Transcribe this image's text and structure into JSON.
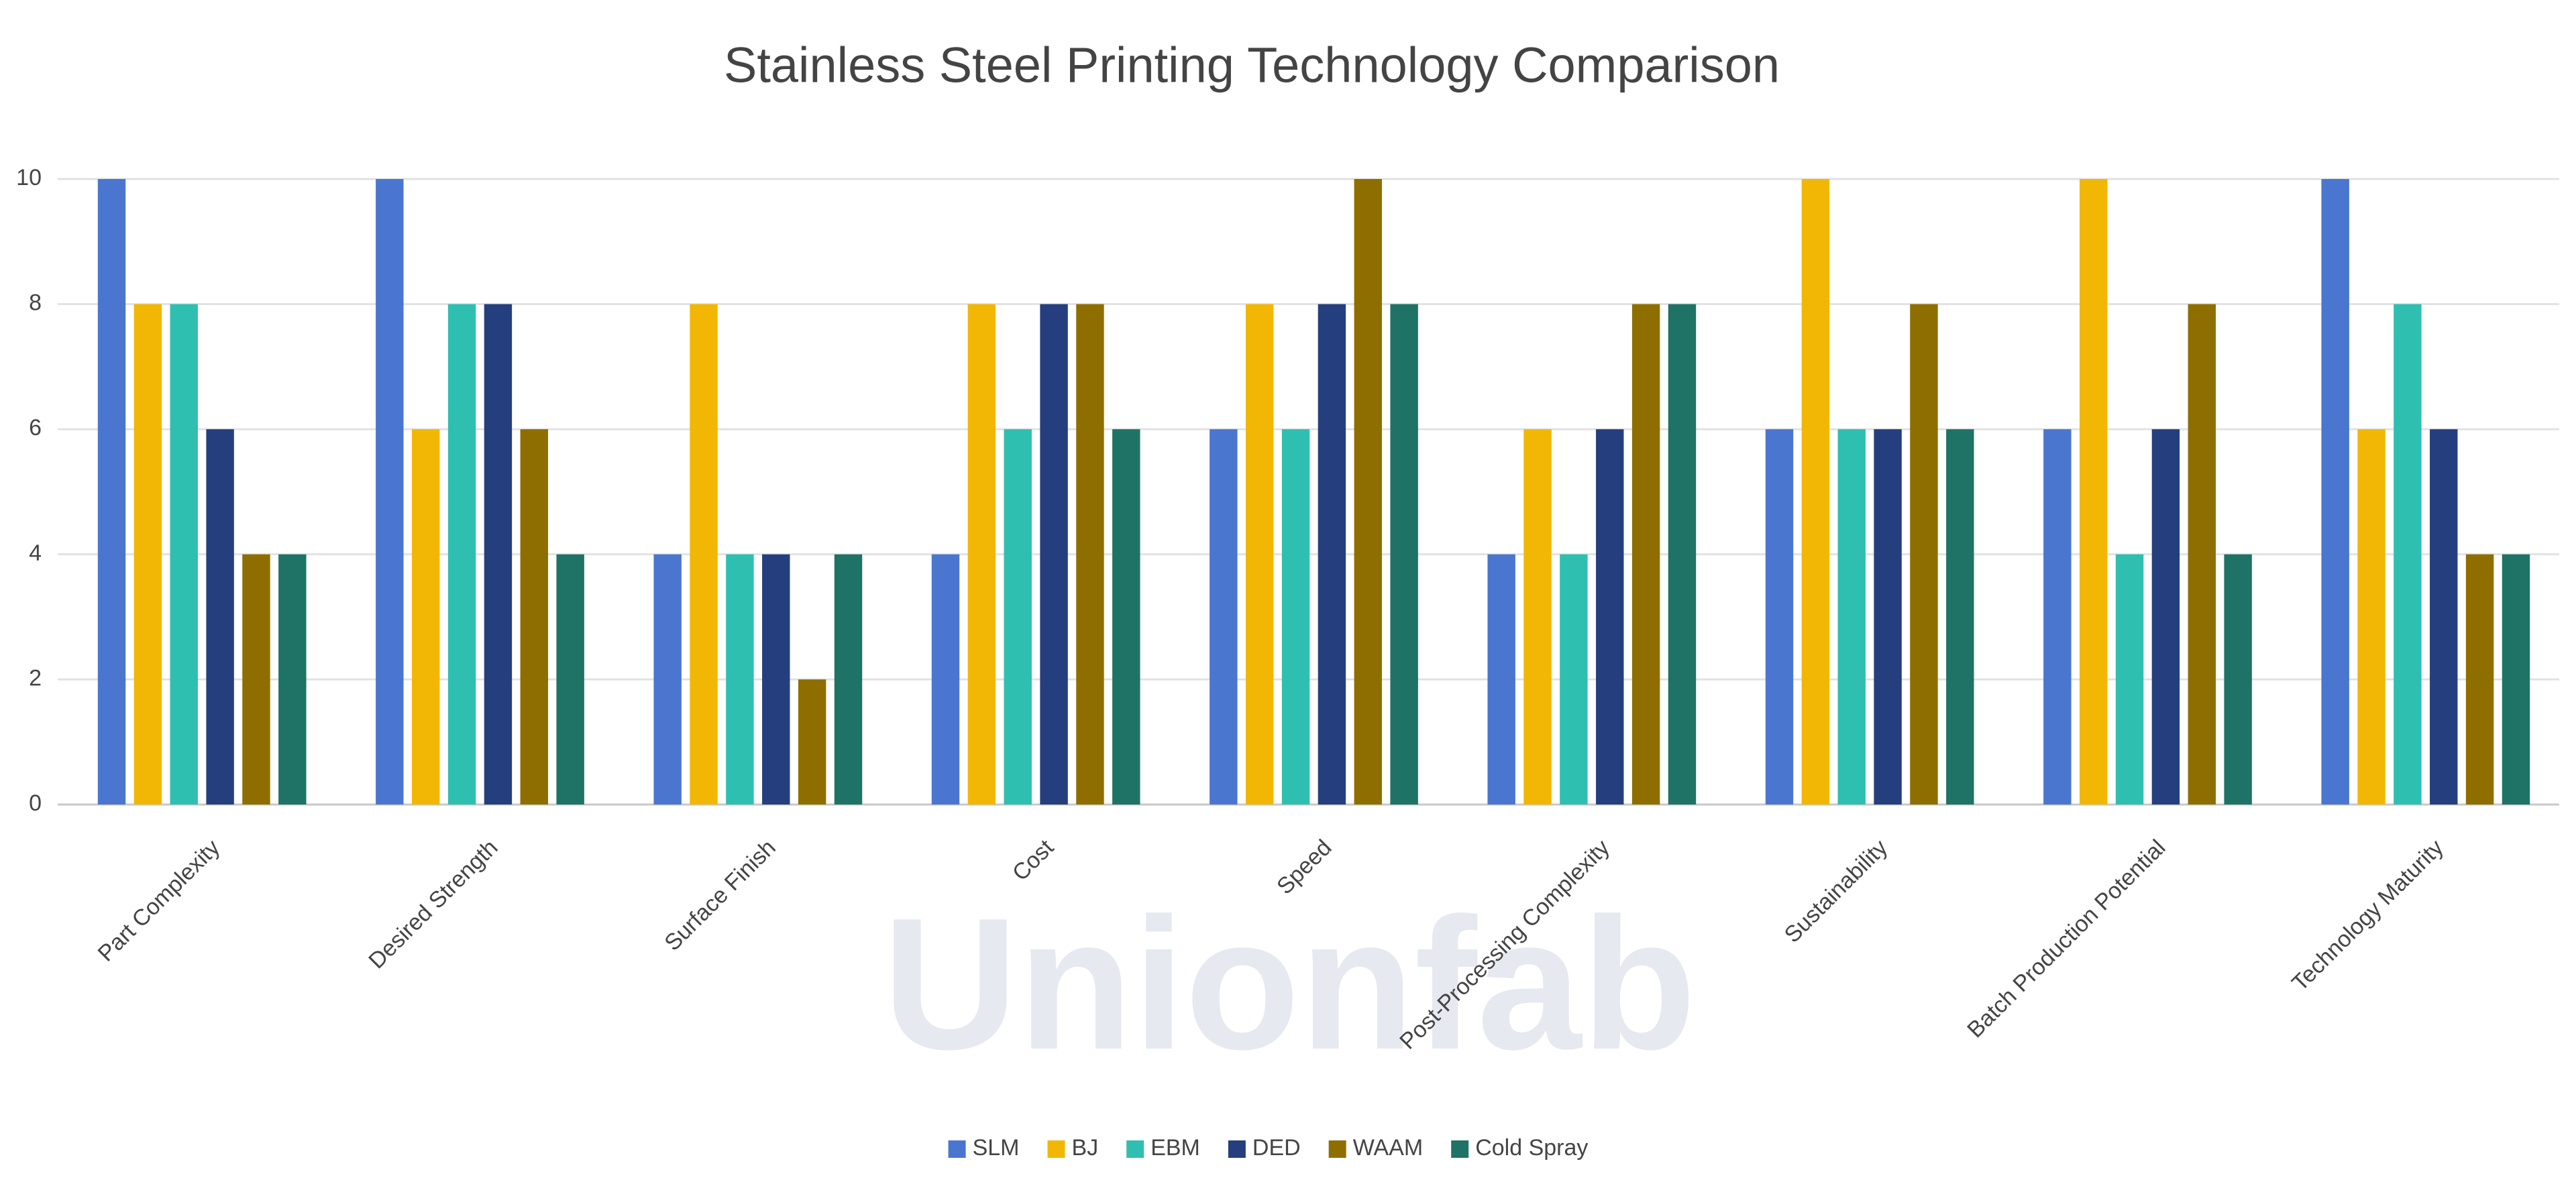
{
  "chart_data": {
    "type": "bar",
    "title": "Stainless Steel Printing Technology Comparison",
    "watermark": "Unionfab",
    "categories": [
      "Part Complexity",
      "Desired Strength",
      "Surface Finish",
      "Cost",
      "Speed",
      "Post-Processing Complexity",
      "Sustainability",
      "Batch Production Potential",
      "Technology Maturity"
    ],
    "series": [
      {
        "name": "SLM",
        "color": "#4a76d0",
        "values": [
          10,
          10,
          4,
          4,
          6,
          4,
          6,
          6,
          10
        ]
      },
      {
        "name": "BJ",
        "color": "#f2b705",
        "values": [
          8,
          6,
          8,
          8,
          8,
          6,
          10,
          10,
          6
        ]
      },
      {
        "name": "EBM",
        "color": "#2fbfb0",
        "values": [
          8,
          8,
          4,
          6,
          6,
          4,
          6,
          4,
          8
        ]
      },
      {
        "name": "DED",
        "color": "#253f7e",
        "values": [
          6,
          8,
          4,
          8,
          8,
          6,
          6,
          6,
          6
        ]
      },
      {
        "name": "WAAM",
        "color": "#8f6e00",
        "values": [
          4,
          6,
          2,
          8,
          10,
          8,
          8,
          8,
          4
        ]
      },
      {
        "name": "Cold Spray",
        "color": "#1e7366",
        "values": [
          4,
          4,
          4,
          6,
          8,
          8,
          6,
          4,
          4
        ]
      }
    ],
    "ylim": [
      0,
      10
    ],
    "yticks": [
      0,
      2,
      4,
      6,
      8,
      10
    ],
    "grid": true,
    "legend": "bottom"
  }
}
